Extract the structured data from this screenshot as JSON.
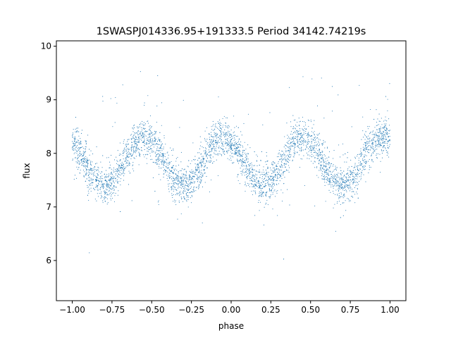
{
  "chart_data": {
    "type": "scatter",
    "title": "1SWASPJ014336.95+191333.5 Period 34142.74219s",
    "xlabel": "phase",
    "ylabel": "flux",
    "xlim": [
      -1.1,
      1.1
    ],
    "ylim": [
      5.25,
      10.1
    ],
    "xticks": [
      -1.0,
      -0.75,
      -0.5,
      -0.25,
      0.0,
      0.25,
      0.5,
      0.75,
      1.0
    ],
    "xtick_labels": [
      "−1.00",
      "−0.75",
      "−0.50",
      "−0.25",
      "0.00",
      "0.25",
      "0.50",
      "0.75",
      "1.00"
    ],
    "yticks": [
      6,
      7,
      8,
      9,
      10
    ],
    "ytick_labels": [
      "6",
      "7",
      "8",
      "9",
      "10"
    ],
    "grid": false,
    "marker_color": "#1f77b4",
    "curve": {
      "mean_flux": 7.85,
      "amplitude": 0.45,
      "cycles_per_unit_phase": 2,
      "peak_phase": -0.55,
      "phase_range": [
        -1.0,
        1.0
      ]
    }
  }
}
